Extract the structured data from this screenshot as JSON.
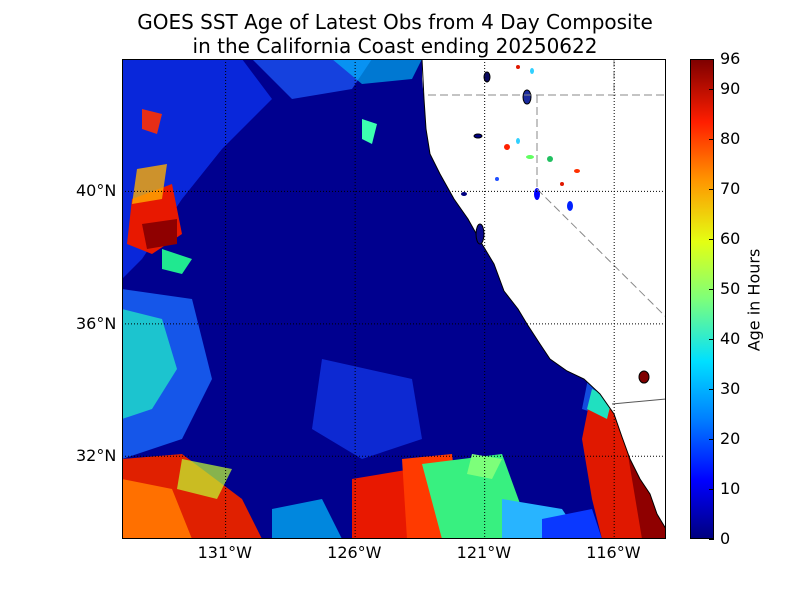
{
  "title": {
    "line1": "GOES SST Age of Latest Obs from 4 Day Composite",
    "line2": "in the California Coast ending 20250622"
  },
  "map": {
    "lon_range": [
      -135,
      -114
    ],
    "lat_range": [
      29.5,
      44
    ],
    "x_ticks": [
      {
        "lon": -131,
        "label": "131°W"
      },
      {
        "lon": -126,
        "label": "126°W"
      },
      {
        "lon": -121,
        "label": "121°W"
      },
      {
        "lon": -116,
        "label": "116°W"
      }
    ],
    "y_ticks": [
      {
        "lat": 40,
        "label": "40°N"
      },
      {
        "lat": 36,
        "label": "36°N"
      },
      {
        "lat": 32,
        "label": "32°N"
      }
    ],
    "ocean_base_color": "#00008f",
    "land_color": "#ffffff"
  },
  "colorbar": {
    "label": "Age in Hours",
    "min": 0,
    "max": 96,
    "ticks": [
      {
        "value": 0,
        "label": "0"
      },
      {
        "value": 10,
        "label": "10"
      },
      {
        "value": 20,
        "label": "20"
      },
      {
        "value": 30,
        "label": "30"
      },
      {
        "value": 40,
        "label": "40"
      },
      {
        "value": 50,
        "label": "50"
      },
      {
        "value": 60,
        "label": "60"
      },
      {
        "value": 70,
        "label": "70"
      },
      {
        "value": 80,
        "label": "80"
      },
      {
        "value": 90,
        "label": "90"
      },
      {
        "value": 96,
        "label": "96"
      }
    ],
    "colormap": "jet"
  }
}
